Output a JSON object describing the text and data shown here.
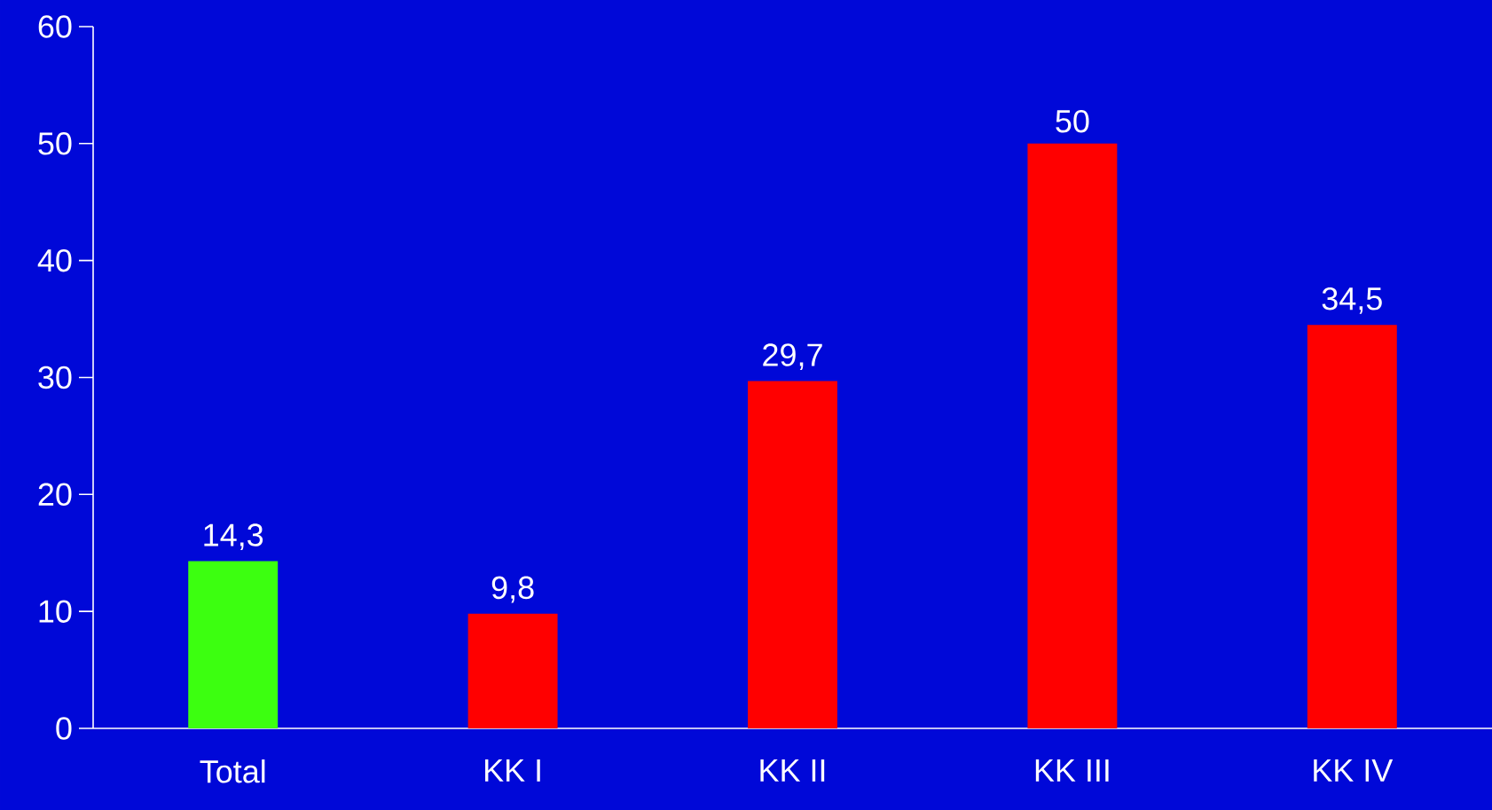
{
  "chart_data": {
    "type": "bar",
    "categories": [
      "Total",
      "KK I",
      "KK II",
      "KK III",
      "KK IV"
    ],
    "values": [
      14.3,
      9.8,
      29.7,
      50,
      34.5
    ],
    "colors": [
      "#3cff10",
      "#ff0000",
      "#ff0000",
      "#ff0000",
      "#ff0000"
    ],
    "value_labels": [
      "14,3",
      "9,8",
      "29,7",
      "50",
      "34,5"
    ],
    "ylim": [
      0,
      60
    ],
    "yticks": [
      0,
      10,
      20,
      30,
      40,
      50,
      60
    ]
  }
}
